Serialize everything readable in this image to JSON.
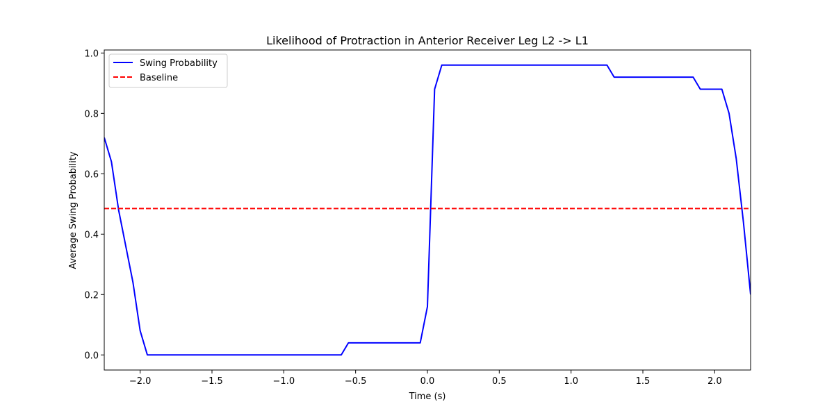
{
  "chart_data": {
    "type": "line",
    "title": "Likelihood of Protraction in Anterior Receiver Leg L2 -> L1",
    "xlabel": "Time (s)",
    "ylabel": "Average Swing Probability",
    "xlim": [
      -2.25,
      2.25
    ],
    "ylim": [
      -0.05,
      1.01
    ],
    "xticks": [
      -2.0,
      -1.5,
      -1.0,
      -0.5,
      0.0,
      0.5,
      1.0,
      1.5,
      2.0
    ],
    "xtick_labels": [
      "−2.0",
      "−1.5",
      "−1.0",
      "−0.5",
      "0.0",
      "0.5",
      "1.0",
      "1.5",
      "2.0"
    ],
    "yticks": [
      0.0,
      0.2,
      0.4,
      0.6,
      0.8,
      1.0
    ],
    "ytick_labels": [
      "0.0",
      "0.2",
      "0.4",
      "0.6",
      "0.8",
      "1.0"
    ],
    "grid": false,
    "legend_position": "top-left",
    "series": [
      {
        "name": "Swing Probability",
        "color": "#0000ff",
        "style": "solid",
        "x": [
          -2.25,
          -2.2,
          -2.15,
          -2.1,
          -2.05,
          -2.0,
          -1.95,
          -1.9,
          -1.5,
          -1.0,
          -0.6,
          -0.55,
          -0.5,
          -0.05,
          0.0,
          0.05,
          0.1,
          0.5,
          1.0,
          1.25,
          1.3,
          1.85,
          1.9,
          2.05,
          2.1,
          2.15,
          2.2,
          2.25
        ],
        "y": [
          0.72,
          0.64,
          0.48,
          0.36,
          0.24,
          0.08,
          0.0,
          0.0,
          0.0,
          0.0,
          0.0,
          0.04,
          0.04,
          0.04,
          0.16,
          0.88,
          0.96,
          0.96,
          0.96,
          0.96,
          0.92,
          0.92,
          0.88,
          0.88,
          0.8,
          0.65,
          0.44,
          0.2
        ]
      },
      {
        "name": "Baseline",
        "color": "#ff0000",
        "style": "dashed",
        "x": [
          -2.25,
          2.25
        ],
        "y": [
          0.485,
          0.485
        ]
      }
    ]
  }
}
